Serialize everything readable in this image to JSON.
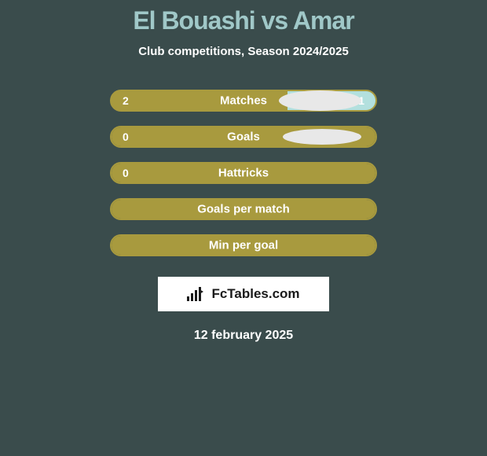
{
  "title": "El Bouashi vs Amar",
  "subtitle": "Club competitions, Season 2024/2025",
  "brand": "FcTables.com",
  "date": "12 february 2025",
  "colors": {
    "background": "#3a4c4c",
    "title_color": "#a0c8c8",
    "bar_fill": "#a89a3e",
    "bar_right_fill": "#b3e0de",
    "icon_bg": "#e8e8e8"
  },
  "rows": [
    {
      "label": "Matches",
      "left_value": "2",
      "right_value": "1",
      "left_pct": 66.7,
      "right_pct": 33.3,
      "show_left_icon": true,
      "show_right_icon": true,
      "icon_size": "large"
    },
    {
      "label": "Goals",
      "left_value": "0",
      "right_value": "",
      "left_pct": 100,
      "right_pct": 0,
      "show_left_icon": true,
      "show_right_icon": true,
      "icon_size": "small"
    },
    {
      "label": "Hattricks",
      "left_value": "0",
      "right_value": "",
      "left_pct": 100,
      "right_pct": 0,
      "show_left_icon": false,
      "show_right_icon": false,
      "icon_size": "small"
    },
    {
      "label": "Goals per match",
      "left_value": "",
      "right_value": "",
      "left_pct": 100,
      "right_pct": 0,
      "show_left_icon": false,
      "show_right_icon": false,
      "icon_size": "small"
    },
    {
      "label": "Min per goal",
      "left_value": "",
      "right_value": "",
      "left_pct": 100,
      "right_pct": 0,
      "show_left_icon": false,
      "show_right_icon": false,
      "icon_size": "small"
    }
  ]
}
